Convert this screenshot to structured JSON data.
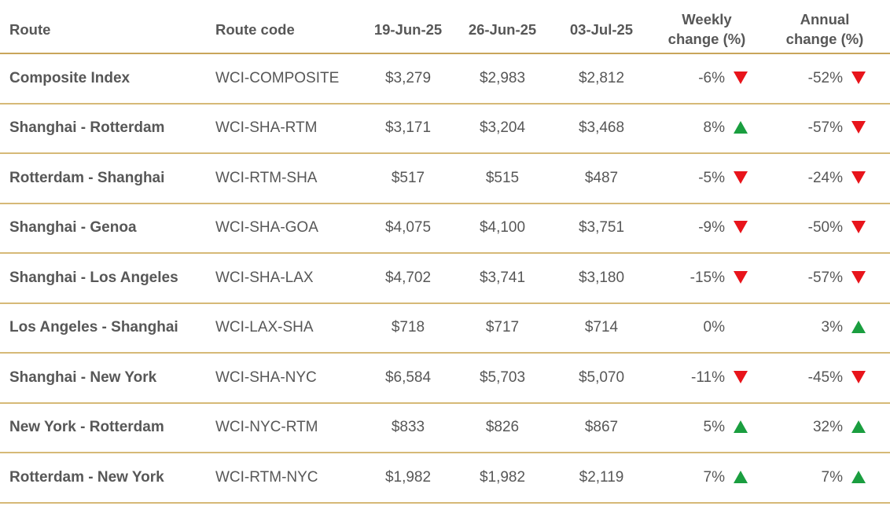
{
  "header": {
    "route": "Route",
    "route_code": "Route code",
    "date1": "19-Jun-25",
    "date2": "26-Jun-25",
    "date3": "03-Jul-25",
    "weekly_line1": "Weekly",
    "weekly_line2": "change (%)",
    "annual_line1": "Annual",
    "annual_line2": "change (%)"
  },
  "colors": {
    "up": "#1a9e3f",
    "down": "#e8141b",
    "rule": "#c9a55a"
  },
  "rows": [
    {
      "route": "Composite Index",
      "code": "WCI-COMPOSITE",
      "d1": "$3,279",
      "d2": "$2,983",
      "d3": "$2,812",
      "weekly": "-6%",
      "weekly_dir": "down",
      "annual": "-52%",
      "annual_dir": "down"
    },
    {
      "route": "Shanghai - Rotterdam",
      "code": "WCI-SHA-RTM",
      "d1": "$3,171",
      "d2": "$3,204",
      "d3": "$3,468",
      "weekly": "8%",
      "weekly_dir": "up",
      "annual": "-57%",
      "annual_dir": "down"
    },
    {
      "route": "Rotterdam - Shanghai",
      "code": "WCI-RTM-SHA",
      "d1": "$517",
      "d2": "$515",
      "d3": "$487",
      "weekly": "-5%",
      "weekly_dir": "down",
      "annual": "-24%",
      "annual_dir": "down"
    },
    {
      "route": "Shanghai - Genoa",
      "code": "WCI-SHA-GOA",
      "d1": "$4,075",
      "d2": "$4,100",
      "d3": "$3,751",
      "weekly": "-9%",
      "weekly_dir": "down",
      "annual": "-50%",
      "annual_dir": "down"
    },
    {
      "route": "Shanghai - Los Angeles",
      "code": "WCI-SHA-LAX",
      "d1": "$4,702",
      "d2": "$3,741",
      "d3": "$3,180",
      "weekly": "-15%",
      "weekly_dir": "down",
      "annual": "-57%",
      "annual_dir": "down"
    },
    {
      "route": "Los Angeles - Shanghai",
      "code": "WCI-LAX-SHA",
      "d1": "$718",
      "d2": "$717",
      "d3": "$714",
      "weekly": "0%",
      "weekly_dir": "none",
      "annual": "3%",
      "annual_dir": "up"
    },
    {
      "route": "Shanghai - New York",
      "code": "WCI-SHA-NYC",
      "d1": "$6,584",
      "d2": "$5,703",
      "d3": "$5,070",
      "weekly": "-11%",
      "weekly_dir": "down",
      "annual": "-45%",
      "annual_dir": "down"
    },
    {
      "route": "New York - Rotterdam",
      "code": "WCI-NYC-RTM",
      "d1": "$833",
      "d2": "$826",
      "d3": "$867",
      "weekly": "5%",
      "weekly_dir": "up",
      "annual": "32%",
      "annual_dir": "up"
    },
    {
      "route": "Rotterdam - New York",
      "code": "WCI-RTM-NYC",
      "d1": "$1,982",
      "d2": "$1,982",
      "d3": "$2,119",
      "weekly": "7%",
      "weekly_dir": "up",
      "annual": "7%",
      "annual_dir": "up"
    }
  ]
}
